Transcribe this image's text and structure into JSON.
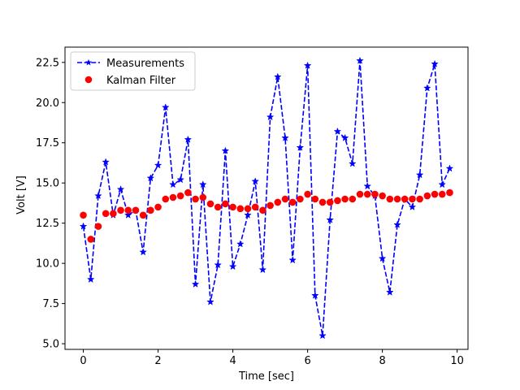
{
  "chart_data": {
    "type": "line",
    "title": "",
    "xlabel": "Time [sec]",
    "ylabel": "Volt [V]",
    "xlim": [
      -0.49,
      10.29
    ],
    "ylim": [
      4.65,
      23.45
    ],
    "grid": false,
    "legend_position": "top-left",
    "xticks": [
      0,
      2,
      4,
      6,
      8,
      10
    ],
    "xtick_labels": [
      "0",
      "2",
      "4",
      "6",
      "8",
      "10"
    ],
    "yticks": [
      5.0,
      7.5,
      10.0,
      12.5,
      15.0,
      17.5,
      20.0,
      22.5
    ],
    "ytick_labels": [
      "5.0",
      "7.5",
      "10.0",
      "12.5",
      "15.0",
      "17.5",
      "20.0",
      "22.5"
    ],
    "series": [
      {
        "name": "Measurements",
        "style": "dashed-line-star",
        "color": "#0000ff",
        "x": [
          0.0,
          0.2,
          0.4,
          0.6,
          0.8,
          1.0,
          1.2,
          1.4,
          1.6,
          1.8,
          2.0,
          2.2,
          2.4,
          2.6,
          2.8,
          3.0,
          3.2,
          3.4,
          3.6,
          3.8,
          4.0,
          4.2,
          4.4,
          4.6,
          4.8,
          5.0,
          5.2,
          5.4,
          5.6,
          5.8,
          6.0,
          6.2,
          6.4,
          6.6,
          6.8,
          7.0,
          7.2,
          7.4,
          7.6,
          7.8,
          8.0,
          8.2,
          8.4,
          8.6,
          8.8,
          9.0,
          9.2,
          9.4,
          9.6,
          9.8
        ],
        "y": [
          12.3,
          9.0,
          14.2,
          16.3,
          13.0,
          14.6,
          13.0,
          13.3,
          10.7,
          15.3,
          16.1,
          19.7,
          14.9,
          15.2,
          17.7,
          8.7,
          14.9,
          7.6,
          9.9,
          17.0,
          9.8,
          11.2,
          13.0,
          15.1,
          9.6,
          19.1,
          21.6,
          17.8,
          10.2,
          17.2,
          22.3,
          8.0,
          5.5,
          12.7,
          18.2,
          17.8,
          16.2,
          22.6,
          14.8,
          14.2,
          10.3,
          8.2,
          12.4,
          14.0,
          13.5,
          15.5,
          20.9,
          22.4,
          14.9,
          15.9
        ]
      },
      {
        "name": "Kalman Filter",
        "style": "dot",
        "color": "#ff0000",
        "x": [
          0.0,
          0.2,
          0.4,
          0.6,
          0.8,
          1.0,
          1.2,
          1.4,
          1.6,
          1.8,
          2.0,
          2.2,
          2.4,
          2.6,
          2.8,
          3.0,
          3.2,
          3.4,
          3.6,
          3.8,
          4.0,
          4.2,
          4.4,
          4.6,
          4.8,
          5.0,
          5.2,
          5.4,
          5.6,
          5.8,
          6.0,
          6.2,
          6.4,
          6.6,
          6.8,
          7.0,
          7.2,
          7.4,
          7.6,
          7.8,
          8.0,
          8.2,
          8.4,
          8.6,
          8.8,
          9.0,
          9.2,
          9.4,
          9.6,
          9.8
        ],
        "y": [
          13.0,
          11.5,
          12.3,
          13.1,
          13.1,
          13.3,
          13.3,
          13.3,
          13.0,
          13.3,
          13.5,
          14.0,
          14.1,
          14.2,
          14.4,
          14.0,
          14.1,
          13.7,
          13.5,
          13.7,
          13.5,
          13.4,
          13.4,
          13.5,
          13.3,
          13.6,
          13.8,
          14.0,
          13.8,
          14.0,
          14.3,
          14.0,
          13.8,
          13.8,
          13.9,
          14.0,
          14.0,
          14.3,
          14.3,
          14.3,
          14.2,
          14.0,
          14.0,
          14.0,
          14.0,
          14.0,
          14.2,
          14.3,
          14.3,
          14.4
        ]
      }
    ]
  }
}
